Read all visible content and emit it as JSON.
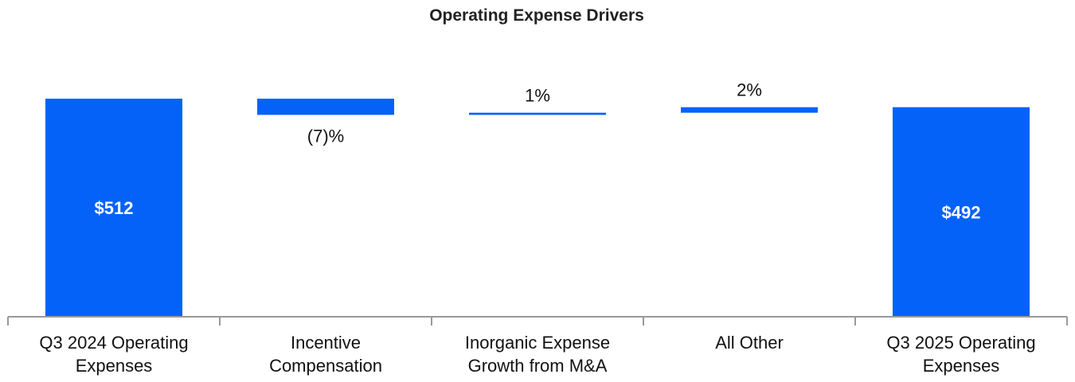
{
  "chart_data": {
    "type": "bar",
    "subtype": "waterfall",
    "title": "Operating Expense Drivers",
    "unit": "$M",
    "color": "#0562f9",
    "axis_color": "#999999",
    "categories": [
      [
        "Q3 2024 Operating",
        "Expenses"
      ],
      [
        "Incentive",
        "Compensation"
      ],
      [
        "Inorganic Expense",
        "Growth from M&A"
      ],
      [
        "All Other"
      ],
      [
        "Q3 2025 Operating",
        "Expenses"
      ]
    ],
    "bars": [
      {
        "kind": "total",
        "start": 0,
        "end": 512,
        "label": "$512"
      },
      {
        "kind": "delta",
        "start": 512,
        "end": 474,
        "label": "(7)%"
      },
      {
        "kind": "delta",
        "start": 474,
        "end": 479,
        "label": "1%"
      },
      {
        "kind": "delta",
        "start": 479,
        "end": 492,
        "label": "2%"
      },
      {
        "kind": "total",
        "start": 0,
        "end": 492,
        "label": "$492"
      }
    ],
    "ylim": [
      0,
      512
    ]
  }
}
